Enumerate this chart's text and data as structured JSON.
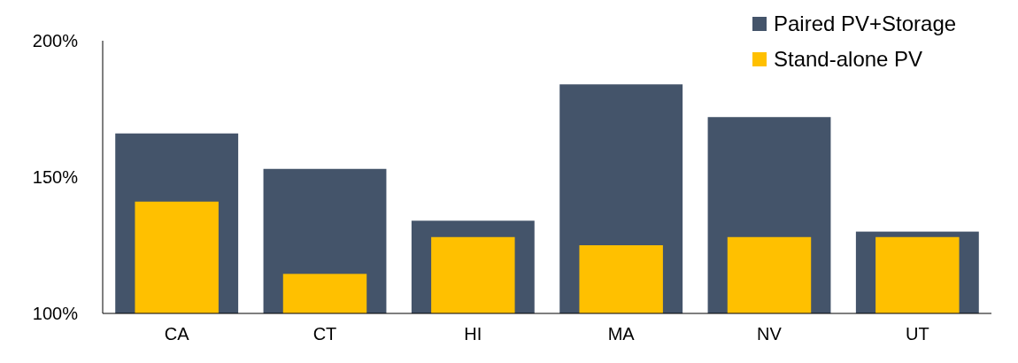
{
  "chart_data": {
    "type": "bar",
    "categories": [
      "CA",
      "CT",
      "HI",
      "MA",
      "NV",
      "UT"
    ],
    "series": [
      {
        "name": "Paired PV+Storage",
        "color": "#44546a",
        "values": [
          166,
          153,
          134,
          184,
          172,
          130
        ]
      },
      {
        "name": "Stand-alone PV",
        "color": "#ffc000",
        "values": [
          141,
          114.5,
          128,
          125,
          128,
          128
        ]
      }
    ],
    "ylim": [
      100,
      200
    ],
    "yticks": [
      {
        "value": 100,
        "label": "100%"
      },
      {
        "value": 150,
        "label": "150%"
      },
      {
        "value": 200,
        "label": "200%"
      }
    ],
    "legend": "top right",
    "grid": false
  }
}
